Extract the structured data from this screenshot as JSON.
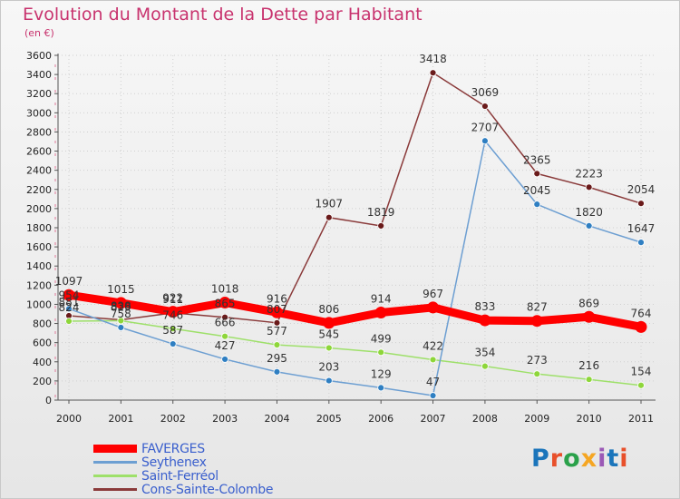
{
  "header": {
    "title": "Evolution du Montant de la Dette par Habitant",
    "unit": "(en €)"
  },
  "logo": {
    "text": "Proxiti",
    "colors": [
      "#1b75bb",
      "#e8502b",
      "#2aa14a",
      "#f5a623",
      "#9b59b6",
      "#1b75bb",
      "#e8502b"
    ]
  },
  "chart_data": {
    "type": "line",
    "x": [
      "2000",
      "2001",
      "2002",
      "2003",
      "2004",
      "2005",
      "2006",
      "2007",
      "2008",
      "2009",
      "2010",
      "2011"
    ],
    "ylim": [
      0,
      3600
    ],
    "yticks": [
      0,
      200,
      400,
      600,
      800,
      1000,
      1200,
      1400,
      1600,
      1800,
      2000,
      2200,
      2400,
      2600,
      2800,
      3000,
      3200,
      3400,
      3600
    ],
    "grid": true,
    "legend_position": "bottom-left",
    "series": [
      {
        "name": "FAVERGES",
        "color": "#ff0000",
        "line_width": 9,
        "marker_fill": "#ff0000",
        "values": [
          1097,
          1015,
          922,
          1018,
          916,
          806,
          914,
          967,
          833,
          827,
          869,
          764
        ]
      },
      {
        "name": "Seythenex",
        "color": "#6d9fd2",
        "line_width": 1.5,
        "marker_fill": "#2f7fc2",
        "values": [
          954,
          758,
          587,
          427,
          295,
          203,
          129,
          47,
          2707,
          2045,
          1820,
          1647
        ]
      },
      {
        "name": "Saint-Ferréol",
        "color": "#9ee06a",
        "line_width": 1.5,
        "marker_fill": "#8ed63a",
        "values": [
          824,
          829,
          746,
          666,
          577,
          545,
          499,
          422,
          354,
          273,
          216,
          154
        ]
      },
      {
        "name": "Cons-Sainte-Colombe",
        "color": "#8a3a3a",
        "line_width": 1.5,
        "marker_fill": "#6a1a1a",
        "values": [
          881,
          838,
          911,
          865,
          807,
          1907,
          1819,
          3418,
          3069,
          2365,
          2223,
          2054
        ]
      }
    ]
  }
}
